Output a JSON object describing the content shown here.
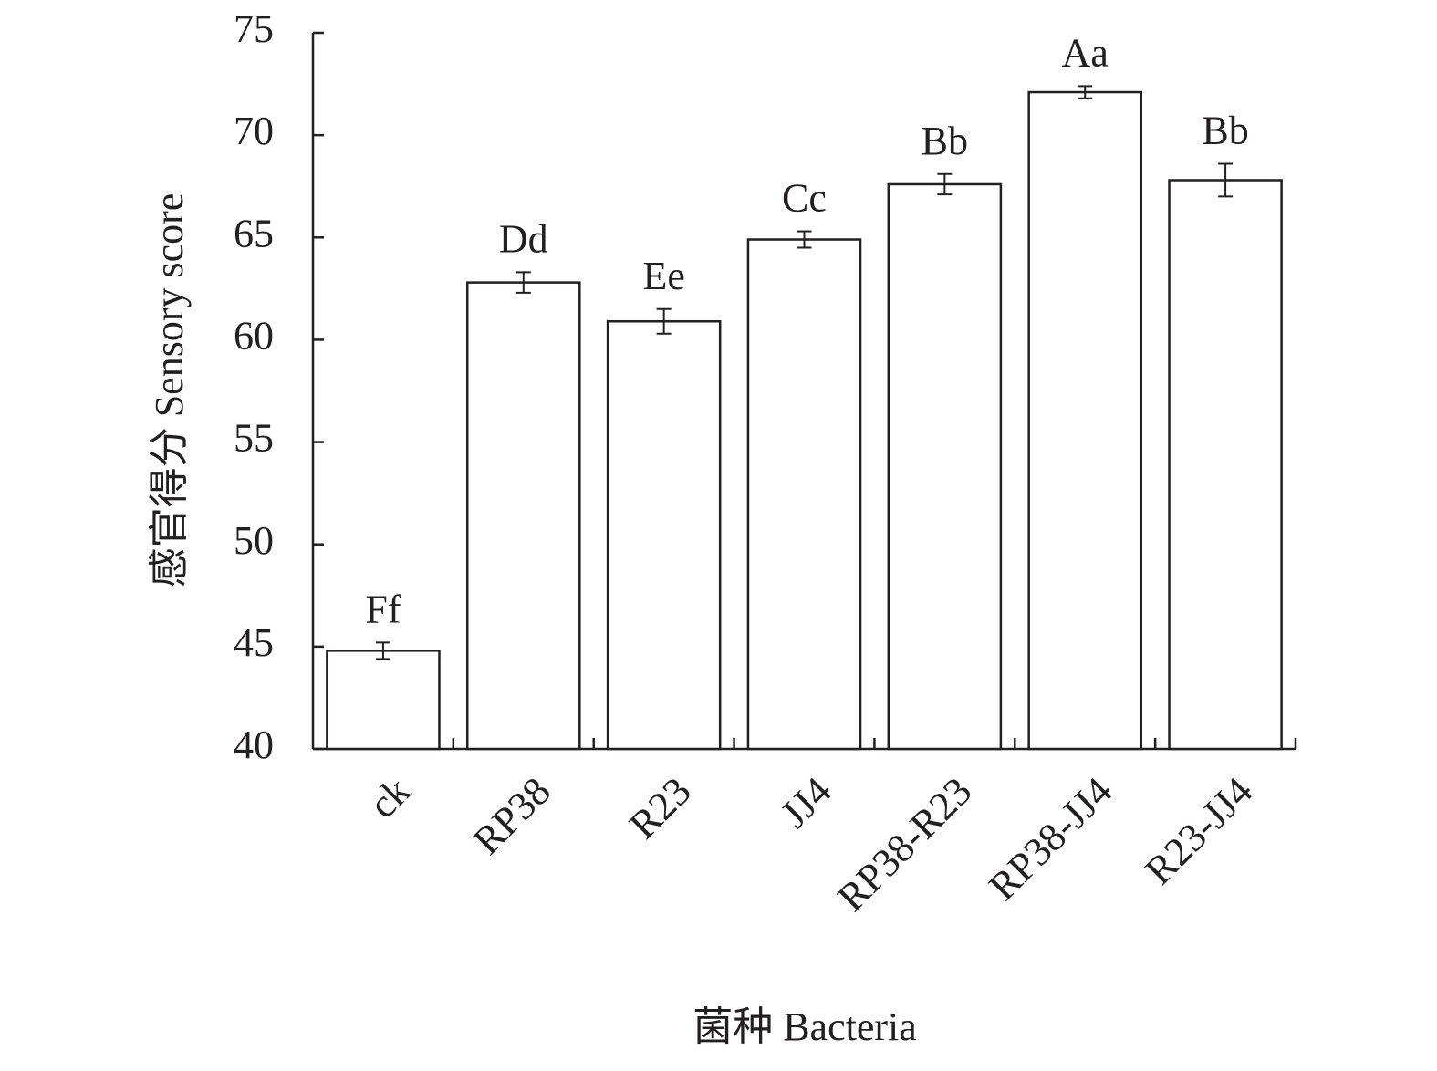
{
  "chart_data": {
    "type": "bar",
    "y_label": "感官得分 Sensory score",
    "x_label": "菌种 Bacteria",
    "categories": [
      "ck",
      "RP38",
      "R23",
      "JJ4",
      "RP38-R23",
      "RP38-JJ4",
      "R23-JJ4"
    ],
    "values": [
      44.8,
      62.8,
      60.9,
      64.9,
      67.6,
      72.1,
      67.8
    ],
    "errors": [
      0.4,
      0.5,
      0.6,
      0.4,
      0.5,
      0.3,
      0.8
    ],
    "significance_labels": [
      "Ff",
      "Dd",
      "Ee",
      "Cc",
      "Bb",
      "Aa",
      "Bb"
    ],
    "color": "#ffffff",
    "ylim": [
      40,
      75
    ],
    "yticks": [
      40,
      45,
      50,
      55,
      60,
      65,
      70,
      75
    ],
    "grid": false
  }
}
